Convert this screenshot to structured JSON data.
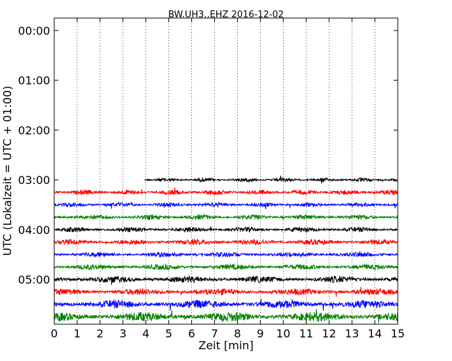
{
  "chart_data": {
    "type": "line",
    "title": "BW.UH3..EHZ 2016-12-02",
    "xlabel": "Zeit  [min]",
    "ylabel": "UTC (Lokalzeit = UTC + 01:00)",
    "xlim": [
      0,
      15
    ],
    "xticks": [
      "0",
      "1",
      "2",
      "3",
      "4",
      "5",
      "6",
      "7",
      "8",
      "9",
      "10",
      "11",
      "12",
      "13",
      "14",
      "15"
    ],
    "y_range_hours": [
      -0.25,
      5.9
    ],
    "y_reversed": true,
    "yticks": [
      "00:00",
      "01:00",
      "02:00",
      "03:00",
      "04:00",
      "05:00"
    ],
    "grid": "vertical dotted lines at each minute",
    "trace_interval_minutes": 15,
    "colors": [
      "#000000",
      "#ff0000",
      "#0000ff",
      "#008000"
    ],
    "traces": [
      {
        "start": "03:00",
        "color": "#000000",
        "x_start": 3.95,
        "x_end": 15,
        "amplitude": 0.35
      },
      {
        "start": "03:15",
        "color": "#ff0000",
        "x_start": 0,
        "x_end": 15,
        "amplitude": 0.45
      },
      {
        "start": "03:30",
        "color": "#0000ff",
        "x_start": 0,
        "x_end": 15,
        "amplitude": 0.4
      },
      {
        "start": "03:45",
        "color": "#008000",
        "x_start": 0,
        "x_end": 15,
        "amplitude": 0.45
      },
      {
        "start": "04:00",
        "color": "#000000",
        "x_start": 0,
        "x_end": 15,
        "amplitude": 0.45
      },
      {
        "start": "04:15",
        "color": "#ff0000",
        "x_start": 0,
        "x_end": 15,
        "amplitude": 0.5
      },
      {
        "start": "04:30",
        "color": "#0000ff",
        "x_start": 0,
        "x_end": 15,
        "amplitude": 0.45
      },
      {
        "start": "04:45",
        "color": "#008000",
        "x_start": 0,
        "x_end": 15,
        "amplitude": 0.5
      },
      {
        "start": "05:00",
        "color": "#000000",
        "x_start": 0,
        "x_end": 15,
        "amplitude": 0.6
      },
      {
        "start": "05:15",
        "color": "#ff0000",
        "x_start": 0,
        "x_end": 15,
        "amplitude": 0.6
      },
      {
        "start": "05:30",
        "color": "#0000ff",
        "x_start": 0,
        "x_end": 15,
        "amplitude": 0.75
      },
      {
        "start": "05:45",
        "color": "#008000",
        "x_start": 0,
        "x_end": 15,
        "amplitude": 0.85
      }
    ]
  }
}
